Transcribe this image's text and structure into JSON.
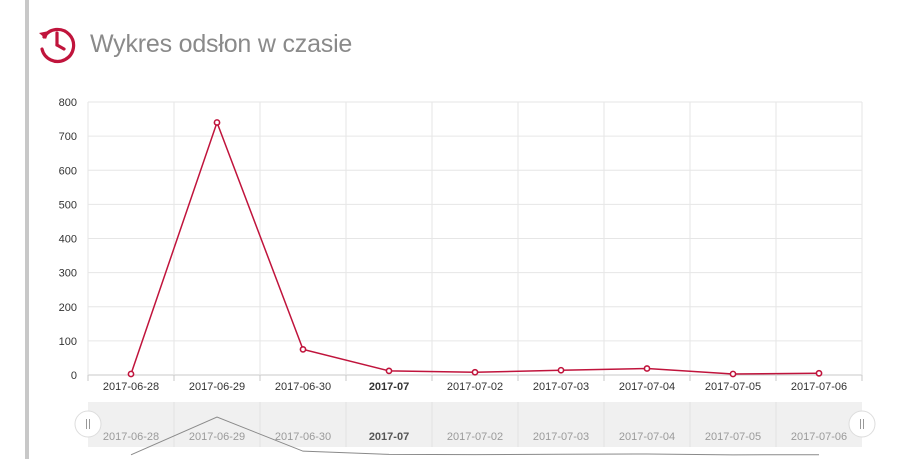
{
  "header": {
    "title": "Wykres odsłon w czasie",
    "icon": "clock-history-icon",
    "accent_color": "#c0143c"
  },
  "chart_data": {
    "type": "line",
    "title": "",
    "xlabel": "",
    "ylabel": "",
    "categories": [
      "2017-06-28",
      "2017-06-29",
      "2017-06-30",
      "2017-07",
      "2017-07-02",
      "2017-07-03",
      "2017-07-04",
      "2017-07-05",
      "2017-07-06"
    ],
    "emphasized_categories": [
      "2017-07"
    ],
    "series": [
      {
        "values": [
          3,
          740,
          75,
          12,
          8,
          14,
          19,
          3,
          5
        ],
        "color": "#c0143c"
      }
    ],
    "ylim": [
      0,
      800
    ],
    "yticks": [
      0,
      100,
      200,
      300,
      400,
      500,
      600,
      700,
      800
    ],
    "grid": true,
    "navigator": {
      "visible": true,
      "handles": [
        "navigator-handle-left",
        "navigator-handle-right"
      ]
    }
  }
}
